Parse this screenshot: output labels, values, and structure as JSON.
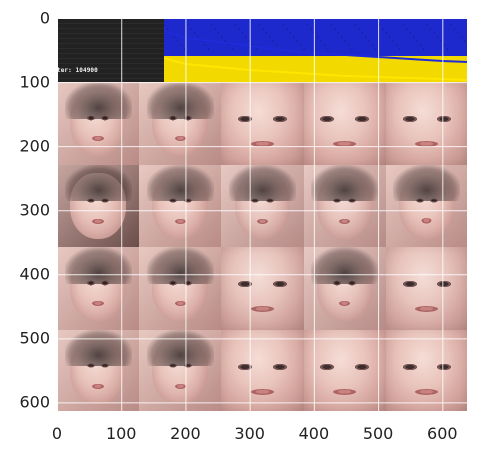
{
  "chart_data": {
    "type": "image",
    "title": "",
    "xlabel": "",
    "ylabel": "",
    "xlim": [
      0,
      640
    ],
    "ylim": [
      615,
      0
    ],
    "xticks": [
      "0",
      "100",
      "200",
      "300",
      "400",
      "500",
      "600"
    ],
    "yticks": [
      "0",
      "100",
      "200",
      "300",
      "400",
      "500",
      "600"
    ],
    "grid": true,
    "grid_color": "#ffffff",
    "frame_color": "#ffffff",
    "background_color": "#1a1a1a",
    "status": {
      "iteration_label": "ter: 104900"
    },
    "loss": {
      "x_start": 167,
      "x_end": 640,
      "top_color": "#1f2bd8",
      "bottom_color": "#ffe600",
      "series": [
        {
          "color": "#1f2bd8",
          "x": [
            167,
            200,
            250,
            300,
            350,
            400,
            450,
            500,
            550,
            600,
            640
          ],
          "y": [
            13,
            20,
            24,
            28,
            32,
            35,
            37,
            39,
            41,
            43,
            44
          ]
        },
        {
          "color": "#ffe600",
          "x": [
            167,
            200,
            250,
            300,
            350,
            400,
            450,
            500,
            550,
            600,
            640
          ],
          "y": [
            40,
            46,
            49,
            52,
            54,
            56,
            58,
            59,
            60,
            61,
            62
          ]
        }
      ]
    },
    "grid_tiles": [
      [
        "tile",
        "tile",
        "tile closeup",
        "tile closeup",
        "tile closeup"
      ],
      [
        "tile dark",
        "tile",
        "tile blur",
        "tile blur",
        "tile smile"
      ],
      [
        "tile",
        "tile",
        "tile blur closeup",
        "tile blur",
        "tile blur closeup"
      ],
      [
        "tile",
        "tile",
        "tile closeup",
        "tile closeup",
        "tile closeup"
      ]
    ]
  }
}
